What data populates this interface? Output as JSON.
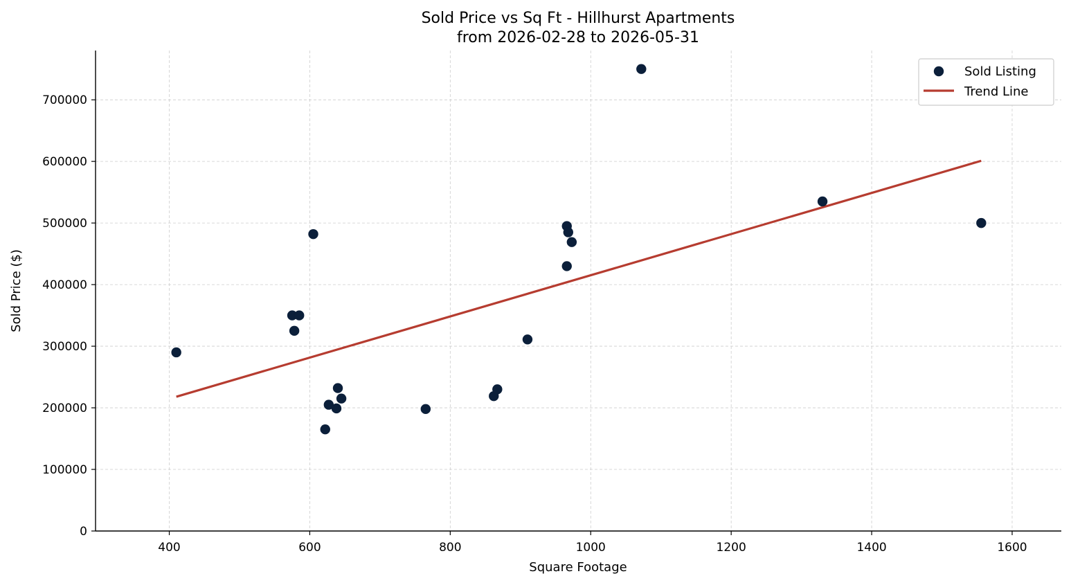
{
  "chart_data": {
    "type": "scatter",
    "title": "Sold Price vs Sq Ft - Hillhurst Apartments",
    "subtitle": "from 2026-02-28 to 2026-05-31",
    "xlabel": "Square Footage",
    "ylabel": "Sold Price ($)",
    "xlim": [
      295,
      1670
    ],
    "ylim": [
      0,
      780000
    ],
    "xticks": [
      400,
      600,
      800,
      1000,
      1200,
      1400,
      1600
    ],
    "yticks": [
      0,
      100000,
      200000,
      300000,
      400000,
      500000,
      600000,
      700000
    ],
    "grid": true,
    "legend_position": "top-right",
    "series": [
      {
        "name": "Sold Listing",
        "kind": "scatter",
        "color": "#0b1f3a",
        "points": [
          {
            "x": 410,
            "y": 290000
          },
          {
            "x": 575,
            "y": 350000
          },
          {
            "x": 585,
            "y": 350000
          },
          {
            "x": 578,
            "y": 325000
          },
          {
            "x": 605,
            "y": 482000
          },
          {
            "x": 622,
            "y": 165000
          },
          {
            "x": 627,
            "y": 205000
          },
          {
            "x": 638,
            "y": 199000
          },
          {
            "x": 640,
            "y": 232000
          },
          {
            "x": 645,
            "y": 215000
          },
          {
            "x": 765,
            "y": 198000
          },
          {
            "x": 862,
            "y": 219000
          },
          {
            "x": 867,
            "y": 230000
          },
          {
            "x": 910,
            "y": 311000
          },
          {
            "x": 966,
            "y": 495000
          },
          {
            "x": 968,
            "y": 485000
          },
          {
            "x": 973,
            "y": 469000
          },
          {
            "x": 966,
            "y": 430000
          },
          {
            "x": 1072,
            "y": 750000
          },
          {
            "x": 1330,
            "y": 535000
          },
          {
            "x": 1556,
            "y": 500000
          }
        ]
      },
      {
        "name": "Trend Line",
        "kind": "line",
        "color": "#b63c30",
        "points": [
          {
            "x": 410,
            "y": 218000
          },
          {
            "x": 1556,
            "y": 601000
          }
        ]
      }
    ]
  }
}
